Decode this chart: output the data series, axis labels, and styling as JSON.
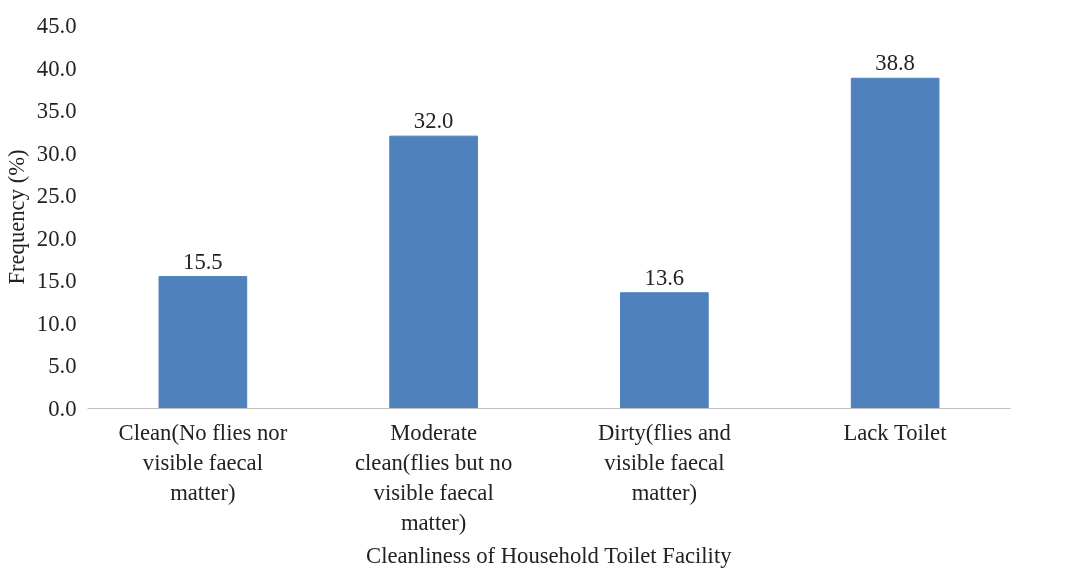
{
  "chart_data": {
    "type": "bar",
    "xlabel": "Cleanliness of Household Toilet Facility",
    "ylabel": "Frequency (%)",
    "categories": [
      "Clean(No flies nor visible faecal matter)",
      "Moderate clean(flies but no visible faecal matter)",
      "Dirty(flies and visible faecal matter)",
      "Lack Toilet"
    ],
    "values": [
      15.5,
      32.0,
      13.6,
      38.8
    ],
    "value_labels": [
      "15.5",
      "32.0",
      "13.6",
      "38.8"
    ],
    "color": "#4f81bd",
    "ylim": [
      0,
      45
    ],
    "yticks": [
      {
        "value": 0,
        "label": "0.0"
      },
      {
        "value": 5,
        "label": "5.0"
      },
      {
        "value": 10,
        "label": "10.0"
      },
      {
        "value": 15,
        "label": "15.0"
      },
      {
        "value": 20,
        "label": "20.0"
      },
      {
        "value": 25,
        "label": "25.0"
      },
      {
        "value": 30,
        "label": "30.0"
      },
      {
        "value": 35,
        "label": "35.0"
      },
      {
        "value": 40,
        "label": "40.0"
      },
      {
        "value": 45,
        "label": "45.0"
      }
    ],
    "grid": false
  }
}
